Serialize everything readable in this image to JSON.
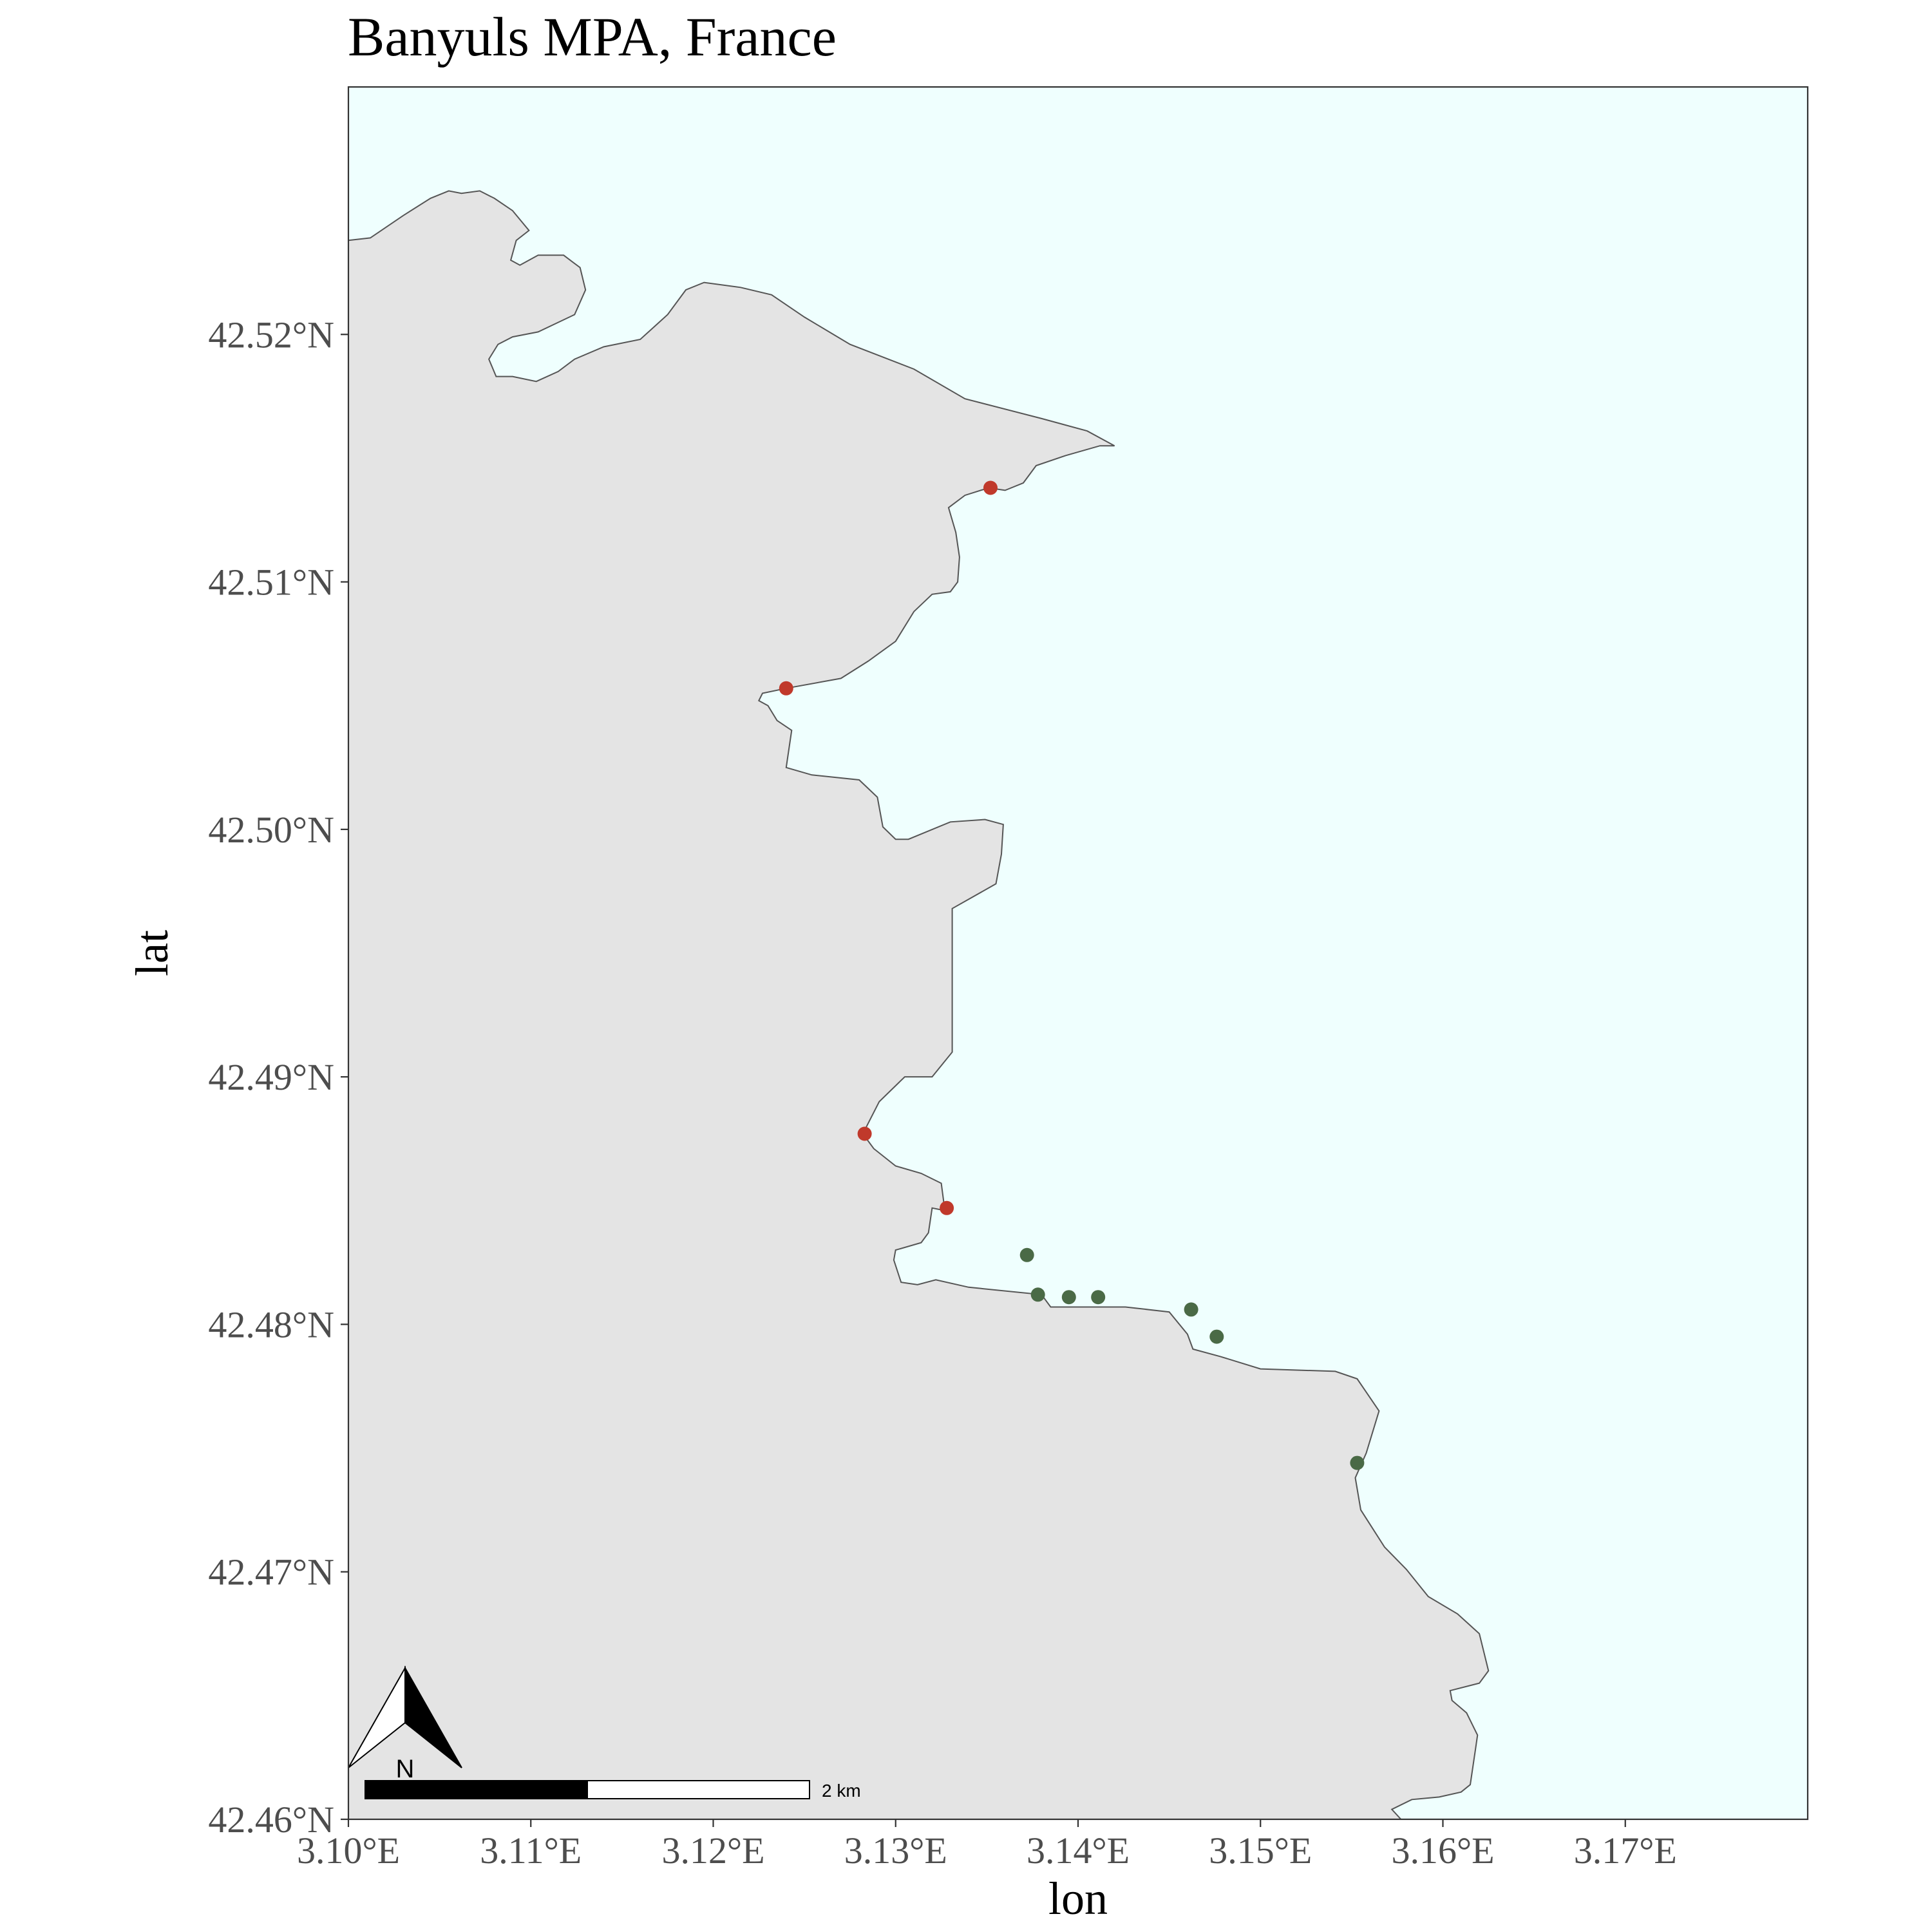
{
  "title": "Banyuls MPA, France",
  "axes": {
    "xlabel": "lon",
    "ylabel": "lat",
    "xlim": [
      3.1,
      3.18
    ],
    "ylim": [
      42.46,
      42.53
    ],
    "x_ticks": [
      {
        "value": 3.1,
        "label": "3.10°E"
      },
      {
        "value": 3.11,
        "label": "3.11°E"
      },
      {
        "value": 3.12,
        "label": "3.12°E"
      },
      {
        "value": 3.13,
        "label": "3.13°E"
      },
      {
        "value": 3.14,
        "label": "3.14°E"
      },
      {
        "value": 3.15,
        "label": "3.15°E"
      },
      {
        "value": 3.16,
        "label": "3.16°E"
      },
      {
        "value": 3.17,
        "label": "3.17°E"
      }
    ],
    "y_ticks": [
      {
        "value": 42.46,
        "label": "42.46°N"
      },
      {
        "value": 42.47,
        "label": "42.47°N"
      },
      {
        "value": 42.48,
        "label": "42.48°N"
      },
      {
        "value": 42.49,
        "label": "42.49°N"
      },
      {
        "value": 42.5,
        "label": "42.50°N"
      },
      {
        "value": 42.51,
        "label": "42.51°N"
      },
      {
        "value": 42.52,
        "label": "42.52°N"
      }
    ]
  },
  "colors": {
    "sea": "#effffe",
    "land": "#e4e4e4",
    "coast": "#555555",
    "red_sites": "#c0392b",
    "green_sites": "#4a6a46",
    "axis_text": "#4d4d4d"
  },
  "north_arrow": {
    "label": "N"
  },
  "scale_bar": {
    "label": "2 km"
  },
  "chart_data": {
    "type": "scatter",
    "title": "Banyuls MPA, France",
    "xlabel": "lon",
    "ylabel": "lat",
    "xlim": [
      3.1,
      3.18
    ],
    "ylim": [
      42.46,
      42.53
    ],
    "grid": false,
    "coastline": [
      [
        3.1,
        42.5238
      ],
      [
        3.1012,
        42.5239
      ],
      [
        3.103,
        42.5248
      ],
      [
        3.1045,
        42.5255
      ],
      [
        3.1055,
        42.5258
      ],
      [
        3.1062,
        42.5257
      ],
      [
        3.1072,
        42.5258
      ],
      [
        3.108,
        42.5255
      ],
      [
        3.109,
        42.525
      ],
      [
        3.1099,
        42.5242
      ],
      [
        3.1092,
        42.5238
      ],
      [
        3.1089,
        42.523
      ],
      [
        3.1094,
        42.5228
      ],
      [
        3.1104,
        42.5232
      ],
      [
        3.1118,
        42.5232
      ],
      [
        3.1127,
        42.5227
      ],
      [
        3.113,
        42.5218
      ],
      [
        3.1124,
        42.5208
      ],
      [
        3.1104,
        42.5201
      ],
      [
        3.109,
        42.5199
      ],
      [
        3.1082,
        42.5196
      ],
      [
        3.1077,
        42.519
      ],
      [
        3.1081,
        42.5183
      ],
      [
        3.109,
        42.5183
      ],
      [
        3.1103,
        42.5181
      ],
      [
        3.1115,
        42.5185
      ],
      [
        3.1124,
        42.519
      ],
      [
        3.114,
        42.5195
      ],
      [
        3.116,
        42.5198
      ],
      [
        3.1175,
        42.5208
      ],
      [
        3.1185,
        42.5218
      ],
      [
        3.1195,
        42.5221
      ],
      [
        3.1215,
        42.5219
      ],
      [
        3.1232,
        42.5216
      ],
      [
        3.125,
        42.5207
      ],
      [
        3.1275,
        42.5196
      ],
      [
        3.131,
        42.5186
      ],
      [
        3.1338,
        42.5174
      ],
      [
        3.138,
        42.5166
      ],
      [
        3.1405,
        42.5161
      ],
      [
        3.142,
        42.5155
      ],
      [
        3.1412,
        42.5155
      ],
      [
        3.1393,
        42.5151
      ],
      [
        3.1377,
        42.5147
      ],
      [
        3.1374,
        42.5144
      ],
      [
        3.137,
        42.514
      ],
      [
        3.136,
        42.5137
      ],
      [
        3.1351,
        42.5138
      ],
      [
        3.1338,
        42.5135
      ],
      [
        3.1329,
        42.513
      ],
      [
        3.1333,
        42.512
      ],
      [
        3.1335,
        42.511
      ],
      [
        3.1334,
        42.51
      ],
      [
        3.133,
        42.5096
      ],
      [
        3.132,
        42.5095
      ],
      [
        3.131,
        42.5088
      ],
      [
        3.13,
        42.5076
      ],
      [
        3.1285,
        42.5068
      ],
      [
        3.127,
        42.5061
      ],
      [
        3.124,
        42.5057
      ],
      [
        3.1227,
        42.5055
      ],
      [
        3.1225,
        42.5052
      ],
      [
        3.123,
        42.505
      ],
      [
        3.1235,
        42.5044
      ],
      [
        3.1243,
        42.504
      ],
      [
        3.124,
        42.5025
      ],
      [
        3.1254,
        42.5022
      ],
      [
        3.128,
        42.502
      ],
      [
        3.129,
        42.5013
      ],
      [
        3.1293,
        42.5001
      ],
      [
        3.13,
        42.4996
      ],
      [
        3.1307,
        42.4996
      ],
      [
        3.133,
        42.5003
      ],
      [
        3.1349,
        42.5004
      ],
      [
        3.1359,
        42.5002
      ],
      [
        3.1358,
        42.499
      ],
      [
        3.1355,
        42.4978
      ],
      [
        3.1331,
        42.4968
      ],
      [
        3.1331,
        42.491
      ],
      [
        3.132,
        42.49
      ],
      [
        3.1305,
        42.49
      ],
      [
        3.1291,
        42.489
      ],
      [
        3.1282,
        42.4877
      ],
      [
        3.1288,
        42.4871
      ],
      [
        3.13,
        42.4864
      ],
      [
        3.1314,
        42.4861
      ],
      [
        3.1325,
        42.4857
      ],
      [
        3.1327,
        42.4846
      ],
      [
        3.132,
        42.4847
      ],
      [
        3.1318,
        42.4837
      ],
      [
        3.1314,
        42.4833
      ],
      [
        3.13,
        42.483
      ],
      [
        3.1299,
        42.4826
      ],
      [
        3.1303,
        42.4817
      ],
      [
        3.1312,
        42.4816
      ],
      [
        3.1322,
        42.4818
      ],
      [
        3.134,
        42.4815
      ],
      [
        3.138,
        42.4812
      ],
      [
        3.1385,
        42.4807
      ],
      [
        3.1426,
        42.4807
      ],
      [
        3.145,
        42.4805
      ],
      [
        3.146,
        42.4796
      ],
      [
        3.1463,
        42.479
      ],
      [
        3.1478,
        42.4787
      ],
      [
        3.15,
        42.4782
      ],
      [
        3.1541,
        42.4781
      ],
      [
        3.1553,
        42.4778
      ],
      [
        3.1565,
        42.4765
      ],
      [
        3.1558,
        42.4748
      ],
      [
        3.1552,
        42.4738
      ],
      [
        3.1555,
        42.4725
      ],
      [
        3.1568,
        42.471
      ],
      [
        3.158,
        42.4701
      ],
      [
        3.1592,
        42.469
      ],
      [
        3.1608,
        42.4683
      ],
      [
        3.162,
        42.4675
      ],
      [
        3.1625,
        42.466
      ],
      [
        3.162,
        42.4655
      ],
      [
        3.1604,
        42.4652
      ],
      [
        3.1605,
        42.4648
      ],
      [
        3.1613,
        42.4643
      ],
      [
        3.1619,
        42.4634
      ],
      [
        3.1618,
        42.4629
      ],
      [
        3.1615,
        42.4614
      ],
      [
        3.161,
        42.4611
      ],
      [
        3.1598,
        42.4609
      ],
      [
        3.1583,
        42.4608
      ],
      [
        3.1572,
        42.4604
      ],
      [
        3.1577,
        42.46
      ]
    ],
    "series": [
      {
        "color": "#c0392b",
        "points": [
          {
            "x": 3.1352,
            "y": 42.5138
          },
          {
            "x": 3.124,
            "y": 42.5057
          },
          {
            "x": 3.1283,
            "y": 42.4877
          },
          {
            "x": 3.1328,
            "y": 42.4847
          }
        ]
      },
      {
        "color": "#4a6a46",
        "points": [
          {
            "x": 3.1372,
            "y": 42.4828
          },
          {
            "x": 3.1378,
            "y": 42.4812
          },
          {
            "x": 3.1395,
            "y": 42.4811
          },
          {
            "x": 3.1411,
            "y": 42.4811
          },
          {
            "x": 3.1462,
            "y": 42.4806
          },
          {
            "x": 3.1476,
            "y": 42.4795
          },
          {
            "x": 3.1553,
            "y": 42.4744
          }
        ]
      }
    ]
  }
}
